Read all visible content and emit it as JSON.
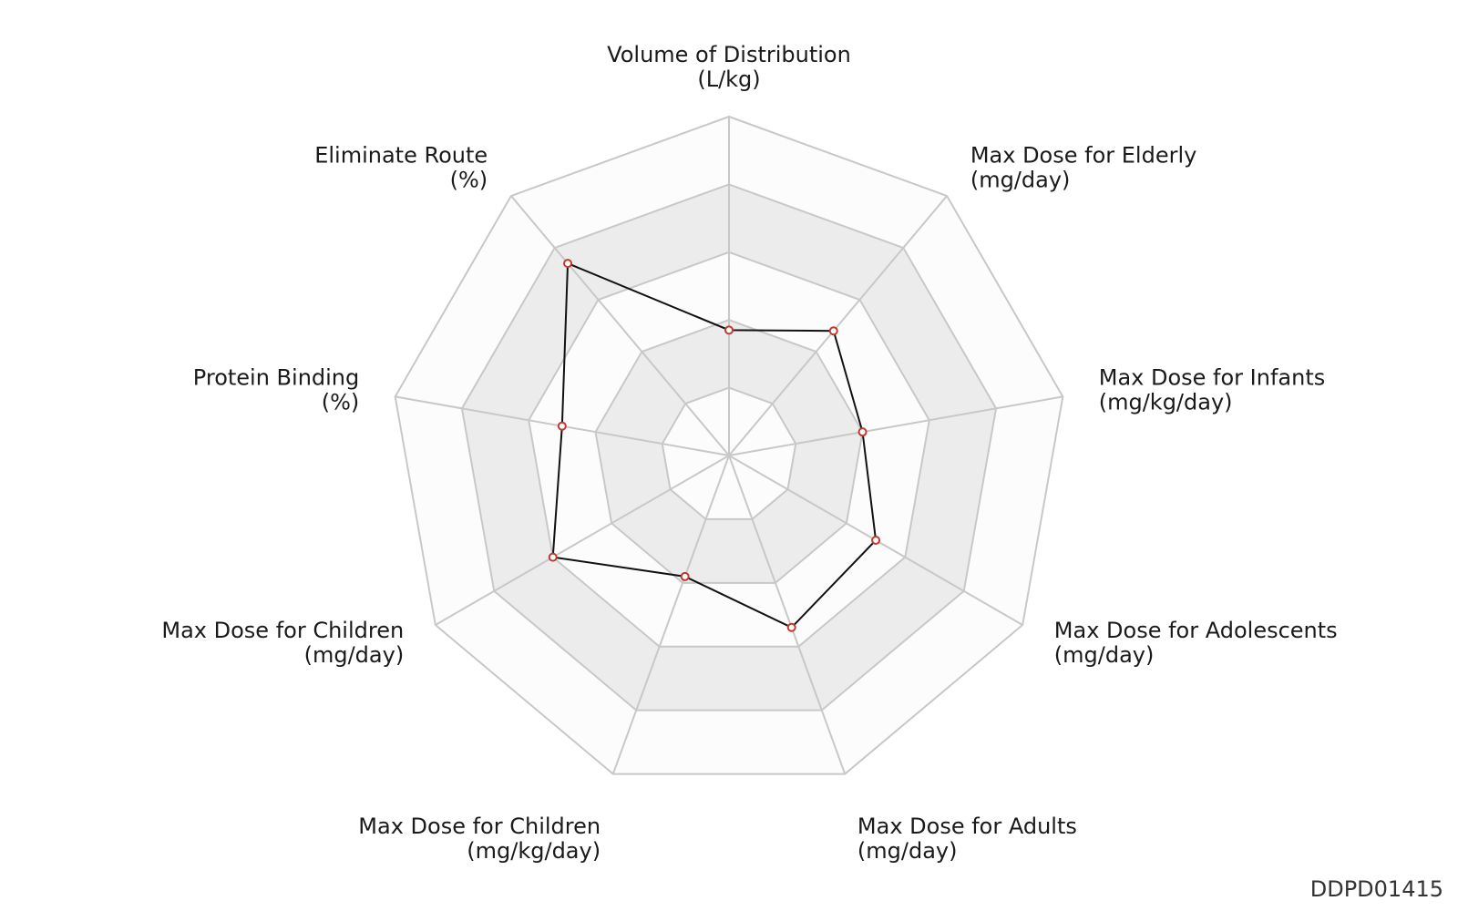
{
  "chart_data": {
    "type": "radar",
    "axes": [
      {
        "line1": "Volume of Distribution",
        "line2": "(L/kg)",
        "anchor": "middle"
      },
      {
        "line1": "Max Dose for Elderly",
        "line2": "(mg/day)",
        "anchor": "start"
      },
      {
        "line1": "Max Dose for Infants",
        "line2": "(mg/kg/day)",
        "anchor": "start"
      },
      {
        "line1": "Max Dose for Adolescents",
        "line2": "(mg/day)",
        "anchor": "start"
      },
      {
        "line1": "Max Dose for Adults",
        "line2": "(mg/day)",
        "anchor": "start"
      },
      {
        "line1": "Max Dose for Children",
        "line2": "(mg/kg/day)",
        "anchor": "end"
      },
      {
        "line1": "Max Dose for Children",
        "line2": "(mg/day)",
        "anchor": "end"
      },
      {
        "line1": "Protein Binding",
        "line2": "(%)",
        "anchor": "end"
      },
      {
        "line1": "Eliminate Route",
        "line2": "(%)",
        "anchor": "end"
      }
    ],
    "values": [
      0.37,
      0.48,
      0.4,
      0.5,
      0.54,
      0.38,
      0.6,
      0.5,
      0.74
    ],
    "range": [
      0,
      1
    ],
    "rings": 5,
    "colors": {
      "line": "#111111",
      "marker_stroke": "#c0392b",
      "marker_fill": "#ffffff",
      "band_shaded": "#ececec",
      "band_light": "#fcfcfc",
      "grid": "#c8c8c8"
    }
  },
  "chart_id": "DDPD01415"
}
